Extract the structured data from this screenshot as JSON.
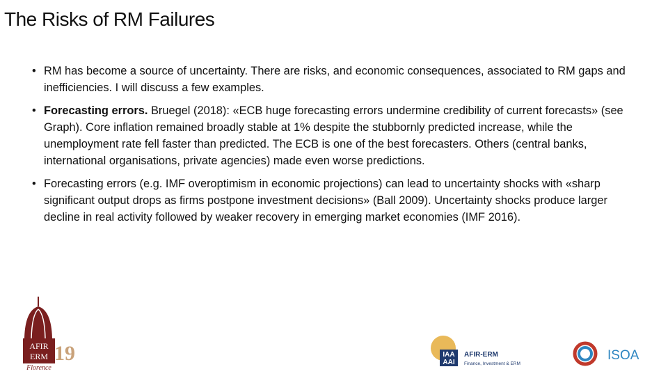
{
  "header": {
    "title": "The Risks of RM Failures"
  },
  "bullets": [
    {
      "text": "RM has become a source of uncertainty. There are risks, and economic consequences, associated to RM gaps and inefficiencies. I will discuss a few examples."
    },
    {
      "lead": "Forecasting errors.",
      "text": "Bruegel (2018): «ECB huge forecasting errors undermine credibility of current forecasts» (see Graph). Core inflation remained broadly stable at 1% despite the stubbornly predicted increase, while the unemployment rate fell faster than predicted. The ECB is one of the best forecasters. Others (central banks, international organisations, private agencies) made even worse predictions."
    },
    {
      "text": "Forecasting errors (e.g. IMF overoptimism in economic projections) can lead to uncertainty shocks with «sharp significant output drops as firms postpone investment decisions» (Ball 2009). Uncertainty shocks produce larger decline in real activity followed by weaker recovery in emerging market economies (IMF 2016)."
    }
  ],
  "logos": {
    "afir": {
      "line1": "AFIR",
      "line2": "ERM",
      "year": "19",
      "city": "Florence"
    },
    "iaa": {
      "top": "IAA",
      "bottom": "AAI",
      "name": "AFIR-ERM",
      "tagline": "Finance, Investment & ERM"
    },
    "isoa": {
      "name": "ISOA"
    }
  }
}
